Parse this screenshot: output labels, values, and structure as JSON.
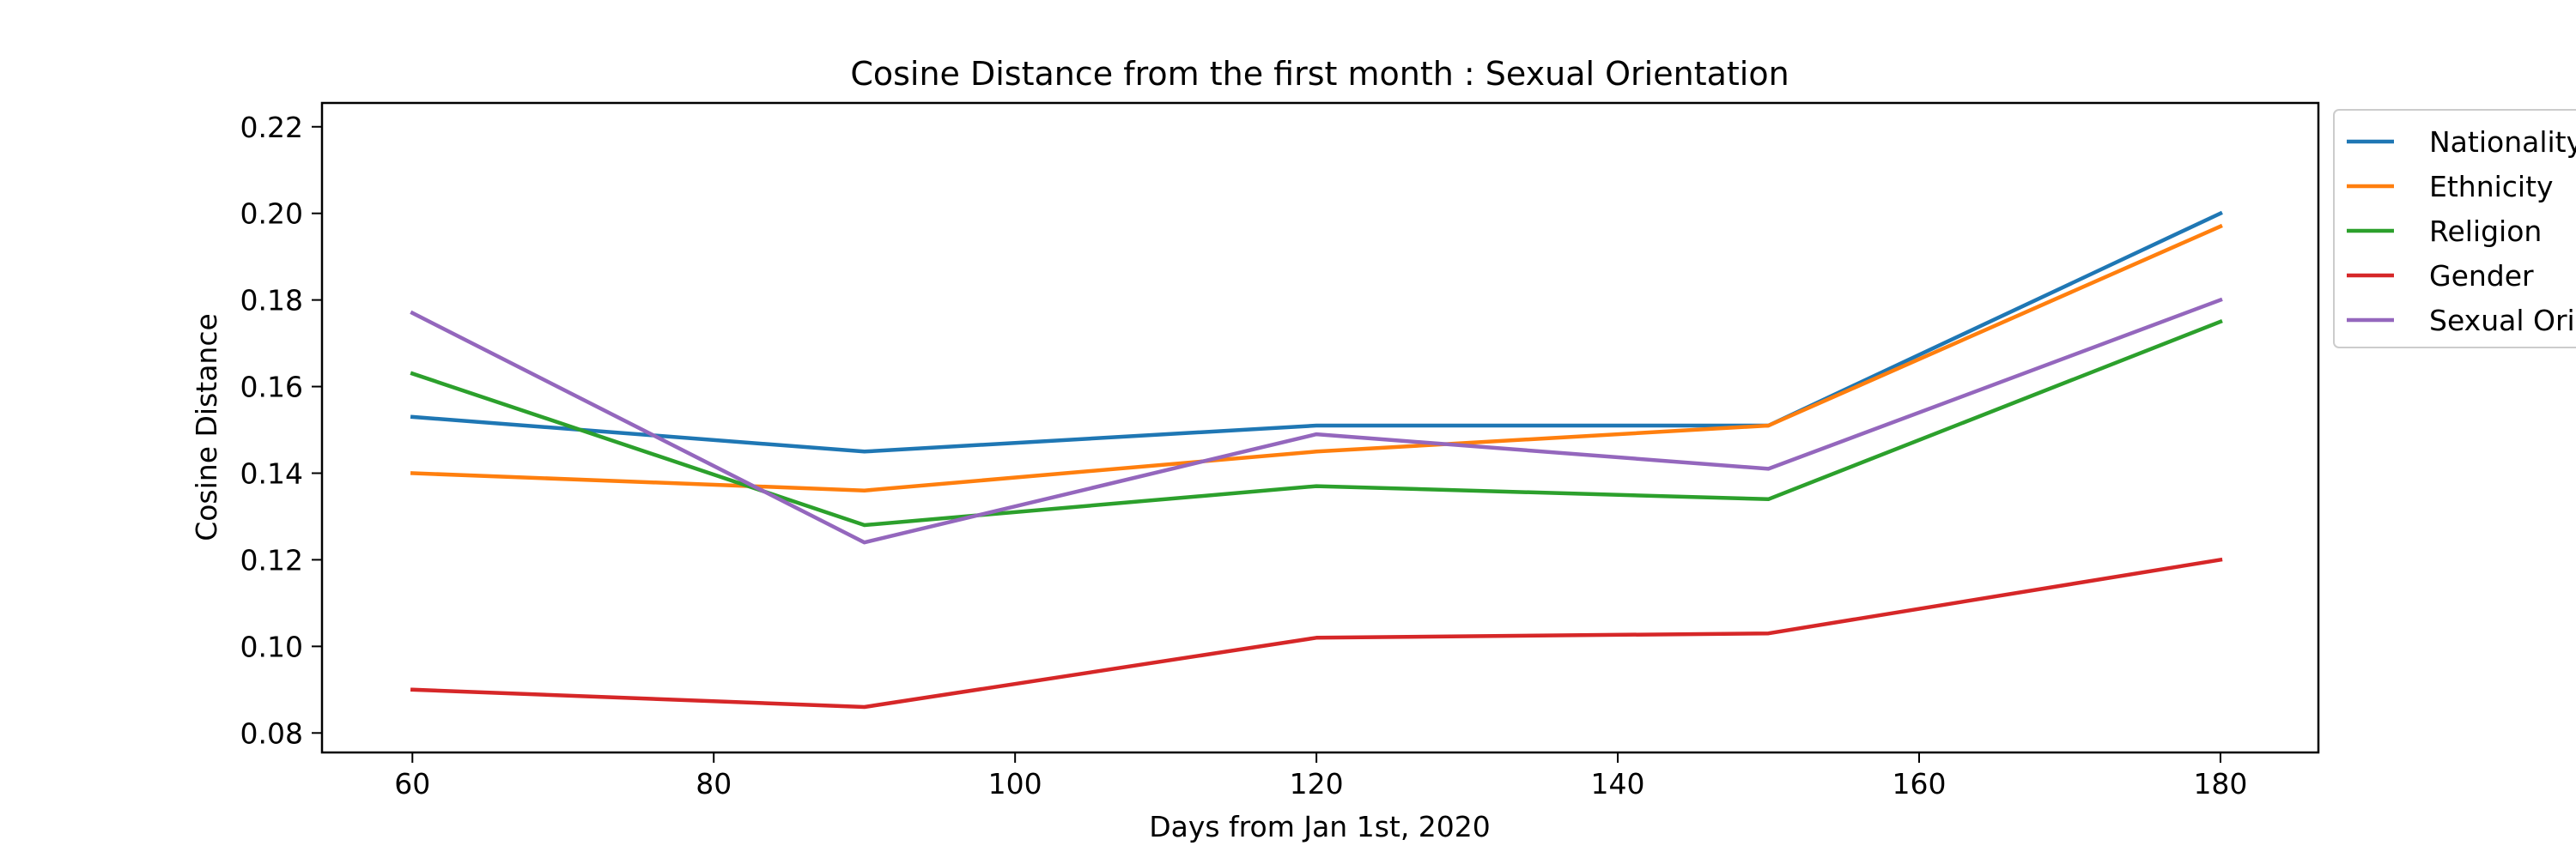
{
  "chart_data": {
    "type": "line",
    "title": "Cosine Distance from the first month : Sexual Orientation",
    "xlabel": "Days from Jan 1st, 2020",
    "ylabel": "Cosine Distance",
    "x": [
      60,
      90,
      120,
      150,
      180
    ],
    "xlim": [
      54,
      186.5
    ],
    "ylim": [
      0.0755,
      0.2255
    ],
    "xticks": [
      60,
      80,
      100,
      120,
      140,
      160,
      180
    ],
    "yticks": [
      0.08,
      0.1,
      0.12,
      0.14,
      0.16,
      0.18,
      0.2,
      0.22
    ],
    "ytick_labels": [
      "0.08",
      "0.10",
      "0.12",
      "0.14",
      "0.16",
      "0.18",
      "0.20",
      "0.22"
    ],
    "grid": false,
    "legend_position": "outside upper right (clipped)",
    "series": [
      {
        "name": "Nationality",
        "color": "#1f77b4",
        "values": [
          0.153,
          0.145,
          0.151,
          0.151,
          0.2
        ]
      },
      {
        "name": "Ethnicity",
        "color": "#ff7f0e",
        "values": [
          0.14,
          0.136,
          0.145,
          0.151,
          0.197
        ]
      },
      {
        "name": "Religion",
        "color": "#2ca02c",
        "values": [
          0.163,
          0.128,
          0.137,
          0.134,
          0.175
        ]
      },
      {
        "name": "Gender",
        "color": "#d62728",
        "values": [
          0.09,
          0.086,
          0.102,
          0.103,
          0.12
        ]
      },
      {
        "name": "Sexual Orientation",
        "color": "#9467bd",
        "values": [
          0.177,
          0.124,
          0.149,
          0.141,
          0.18
        ]
      }
    ]
  }
}
